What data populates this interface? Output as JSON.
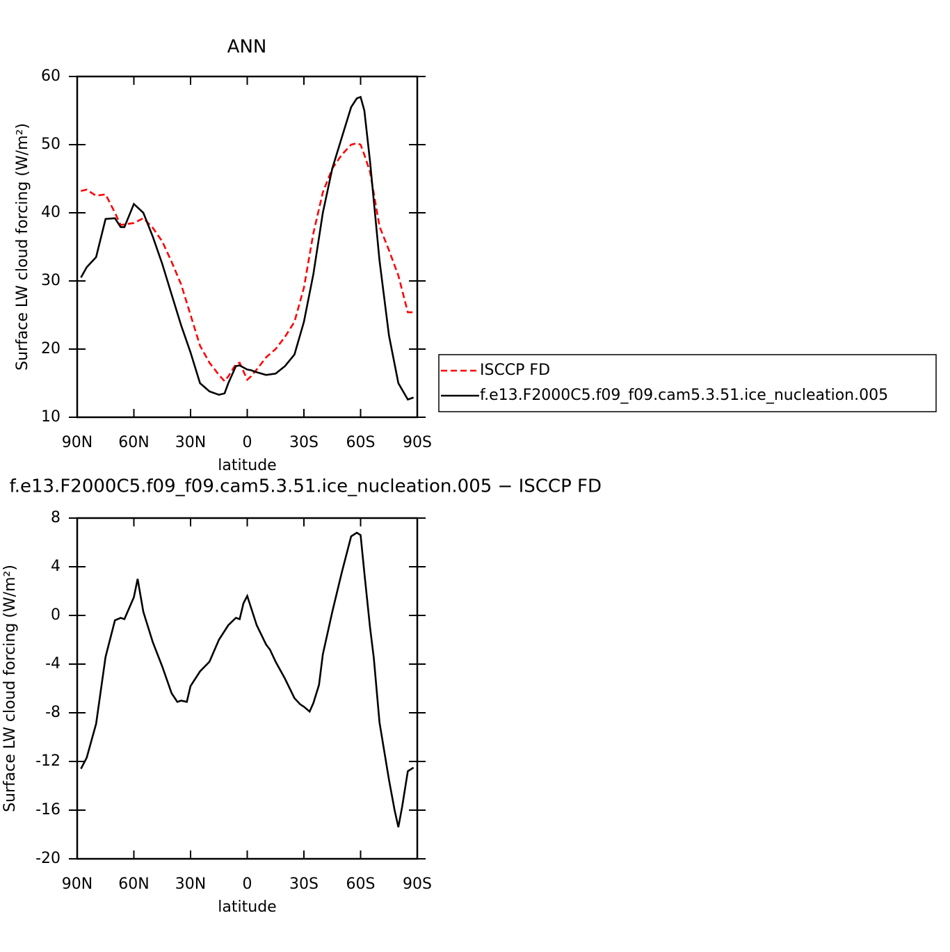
{
  "chart_data": [
    {
      "type": "line",
      "title": "ANN",
      "xlabel": "latitude",
      "ylabel": "Surface LW cloud forcing (W/m²)",
      "xlim": [
        90,
        -90
      ],
      "ylim": [
        10,
        60
      ],
      "xticks": [
        {
          "value": 90,
          "label": "90N"
        },
        {
          "value": 60,
          "label": "60N"
        },
        {
          "value": 30,
          "label": "30N"
        },
        0,
        {
          "value": -30,
          "label": "30S"
        },
        {
          "value": -60,
          "label": "60S"
        },
        {
          "value": -90,
          "label": "90S"
        }
      ],
      "yticks": [
        10,
        20,
        30,
        40,
        50,
        60
      ],
      "legend": "right",
      "x": [
        88,
        85,
        80,
        75,
        70,
        67,
        65,
        60,
        55,
        50,
        45,
        40,
        35,
        30,
        25,
        20,
        15,
        12,
        10,
        6,
        4,
        0,
        -2,
        -5,
        -10,
        -15,
        -20,
        -25,
        -30,
        -35,
        -40,
        -45,
        -50,
        -55,
        -58,
        -60,
        -62,
        -65,
        -70,
        -75,
        -80,
        -85,
        -88
      ],
      "series": [
        {
          "name": "ISCCP FD",
          "color": "#ff0000",
          "dash": true,
          "values": [
            43.2,
            43.4,
            42.5,
            42.7,
            40,
            38.2,
            38.3,
            38.5,
            39.2,
            37.8,
            35.8,
            32.8,
            29.5,
            25,
            20.5,
            18,
            16.2,
            15.3,
            16,
            17.8,
            18,
            15.5,
            16,
            17,
            18.8,
            20,
            21.8,
            24,
            29,
            37,
            43,
            46.5,
            48.5,
            50,
            50.2,
            50,
            48.5,
            46,
            38,
            34.5,
            30.8,
            25.4,
            25.4
          ]
        },
        {
          "name": "f.e13.F2000C5.f09_f09.cam5.3.51.ice_nucleation.005",
          "color": "#000000",
          "dash": false,
          "values": [
            30.5,
            32,
            33.5,
            39.1,
            39.2,
            37.9,
            37.9,
            41.3,
            40,
            36.5,
            32.5,
            28,
            23.5,
            19.5,
            15,
            13.8,
            13.3,
            13.5,
            15,
            17.5,
            17.6,
            17,
            16.9,
            16.6,
            16.2,
            16.4,
            17.5,
            19.2,
            24,
            31,
            40,
            46.5,
            51,
            55.5,
            56.8,
            57,
            55,
            47.5,
            33,
            22,
            15,
            12.6,
            12.9
          ]
        }
      ]
    },
    {
      "type": "line",
      "title": "f.e13.F2000C5.f09_f09.cam5.3.51.ice_nucleation.005 − ISCCP FD",
      "xlabel": "latitude",
      "ylabel": "Surface LW cloud forcing (W/m²)",
      "xlim": [
        90,
        -90
      ],
      "ylim": [
        -20,
        8
      ],
      "xticks": [
        {
          "value": 90,
          "label": "90N"
        },
        {
          "value": 60,
          "label": "60N"
        },
        {
          "value": 30,
          "label": "30N"
        },
        0,
        {
          "value": -30,
          "label": "30S"
        },
        {
          "value": -60,
          "label": "60S"
        },
        {
          "value": -90,
          "label": "90S"
        }
      ],
      "yticks": [
        -20,
        -16,
        -12,
        -8,
        -4,
        0,
        4,
        8
      ],
      "x": [
        88,
        85,
        80,
        75,
        70,
        67,
        65,
        60,
        58,
        55,
        50,
        45,
        40,
        37,
        35,
        32,
        30,
        25,
        20,
        15,
        10,
        6,
        4,
        2,
        0,
        -5,
        -10,
        -12,
        -15,
        -20,
        -25,
        -28,
        -30,
        -33,
        -35,
        -38,
        -40,
        -45,
        -50,
        -55,
        -58,
        -60,
        -62,
        -65,
        -67,
        -70,
        -75,
        -78,
        -80,
        -82,
        -85,
        -88
      ],
      "series": [
        {
          "color": "#000000",
          "dash": false,
          "values": [
            -12.6,
            -11.7,
            -8.9,
            -3.4,
            -0.4,
            -0.2,
            -0.3,
            1.5,
            3,
            0.3,
            -2.2,
            -4.2,
            -6.4,
            -7.1,
            -7,
            -7.1,
            -5.8,
            -4.6,
            -3.8,
            -2,
            -0.8,
            -0.2,
            -0.3,
            1,
            1.6,
            -0.8,
            -2.4,
            -2.8,
            -3.8,
            -5.2,
            -6.8,
            -7.3,
            -7.5,
            -7.9,
            -7.2,
            -5.7,
            -3.2,
            0.3,
            3.5,
            6.5,
            6.8,
            6.6,
            3.5,
            -1,
            -3.5,
            -8.8,
            -13.5,
            -16,
            -17.4,
            -15.7,
            -12.8,
            -12.5
          ]
        }
      ]
    }
  ]
}
